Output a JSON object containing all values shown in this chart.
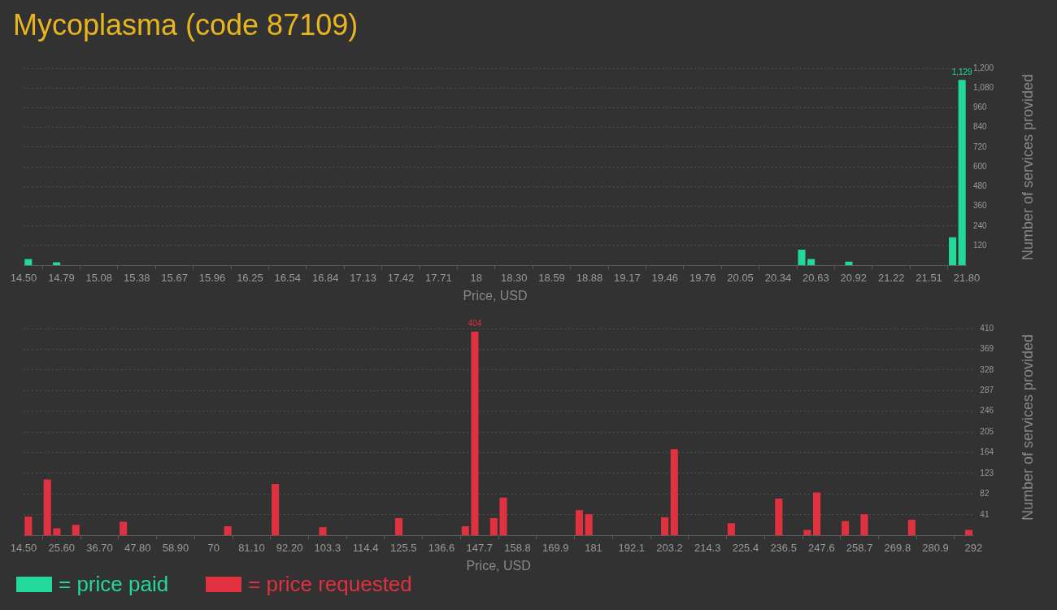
{
  "chart_data": [
    {
      "type": "histogram",
      "title": "Mycoplasma (code 87109)",
      "xlabel": "Price, USD",
      "ylabel": "Number of services provided",
      "bins": [
        14.5,
        14.573,
        14.646,
        14.719,
        14.792,
        14.865,
        14.938,
        15.011,
        15.084,
        15.157,
        15.23,
        15.303,
        15.376,
        15.449,
        15.522,
        15.595,
        15.668,
        15.741,
        15.814,
        15.887,
        15.96,
        16.033,
        16.106,
        16.179,
        16.252,
        16.325,
        16.398,
        16.471,
        16.544,
        16.617,
        16.69,
        16.763,
        16.836,
        16.909,
        16.982,
        17.055,
        17.128,
        17.201,
        17.274,
        17.347,
        17.42,
        17.493,
        17.566,
        17.639,
        17.712,
        17.785,
        17.858,
        17.931,
        18.004,
        18.077,
        18.15,
        18.223,
        18.296,
        18.369,
        18.442,
        18.515,
        18.588,
        18.661,
        18.734,
        18.807,
        18.88,
        18.953,
        19.026,
        19.099,
        19.172,
        19.245,
        19.318,
        19.391,
        19.464,
        19.537,
        19.61,
        19.683,
        19.756,
        19.829,
        19.902,
        19.975,
        20.048,
        20.121,
        20.194,
        20.267,
        20.34,
        20.413,
        20.486,
        20.559,
        20.632,
        20.705,
        20.778,
        20.851,
        20.924,
        20.997,
        21.07,
        21.143,
        21.216,
        21.289,
        21.362,
        21.435,
        21.508,
        21.581,
        21.654,
        21.727,
        21.8
      ],
      "series": [
        {
          "name": "= price paid",
          "color": "#22d99a",
          "values": [
            38,
            0,
            0,
            18,
            0,
            0,
            0,
            0,
            0,
            0,
            0,
            0,
            0,
            0,
            0,
            0,
            0,
            0,
            0,
            0,
            0,
            0,
            0,
            0,
            0,
            0,
            0,
            0,
            0,
            0,
            0,
            0,
            0,
            0,
            0,
            0,
            0,
            0,
            0,
            0,
            0,
            0,
            0,
            0,
            0,
            0,
            0,
            0,
            0,
            0,
            0,
            0,
            0,
            0,
            0,
            0,
            0,
            0,
            0,
            0,
            0,
            0,
            0,
            0,
            0,
            0,
            0,
            0,
            0,
            0,
            0,
            0,
            0,
            0,
            0,
            0,
            0,
            0,
            0,
            0,
            0,
            0,
            95,
            38,
            0,
            0,
            0,
            22,
            0,
            0,
            0,
            0,
            0,
            0,
            0,
            0,
            0,
            0,
            171,
            1129
          ],
          "value_labels": [
            null,
            null,
            null,
            null,
            null,
            null,
            null,
            null,
            null,
            null,
            null,
            null,
            null,
            null,
            null,
            null,
            null,
            null,
            null,
            null,
            null,
            null,
            null,
            null,
            null,
            null,
            null,
            null,
            null,
            null,
            null,
            null,
            null,
            null,
            null,
            null,
            null,
            null,
            null,
            null,
            null,
            null,
            null,
            null,
            null,
            null,
            null,
            null,
            null,
            null,
            null,
            null,
            null,
            null,
            null,
            null,
            null,
            null,
            null,
            null,
            null,
            null,
            null,
            null,
            null,
            null,
            null,
            null,
            null,
            null,
            null,
            null,
            null,
            null,
            null,
            null,
            null,
            null,
            null,
            null,
            null,
            null,
            null,
            null,
            null,
            null,
            null,
            null,
            null,
            null,
            null,
            null,
            null,
            null,
            null,
            null,
            null,
            null,
            null,
            "1,129"
          ]
        }
      ],
      "xlim": [
        14.5,
        21.8
      ],
      "xticks": [
        {
          "value": 14.5,
          "label": "14.50"
        },
        {
          "value": 14.792,
          "label": "14.79"
        },
        {
          "value": 15.084,
          "label": "15.08"
        },
        {
          "value": 15.376,
          "label": "15.38"
        },
        {
          "value": 15.668,
          "label": "15.67"
        },
        {
          "value": 15.96,
          "label": "15.96"
        },
        {
          "value": 16.252,
          "label": "16.25"
        },
        {
          "value": 16.544,
          "label": "16.54"
        },
        {
          "value": 16.836,
          "label": "16.84"
        },
        {
          "value": 17.128,
          "label": "17.13"
        },
        {
          "value": 17.42,
          "label": "17.42"
        },
        {
          "value": 17.712,
          "label": "17.71"
        },
        {
          "value": 18.004,
          "label": "18"
        },
        {
          "value": 18.296,
          "label": "18.30"
        },
        {
          "value": 18.588,
          "label": "18.59"
        },
        {
          "value": 18.88,
          "label": "18.88"
        },
        {
          "value": 19.172,
          "label": "19.17"
        },
        {
          "value": 19.464,
          "label": "19.46"
        },
        {
          "value": 19.756,
          "label": "19.76"
        },
        {
          "value": 20.048,
          "label": "20.05"
        },
        {
          "value": 20.34,
          "label": "20.34"
        },
        {
          "value": 20.632,
          "label": "20.63"
        },
        {
          "value": 20.924,
          "label": "20.92"
        },
        {
          "value": 21.216,
          "label": "21.22"
        },
        {
          "value": 21.508,
          "label": "21.51"
        },
        {
          "value": 21.8,
          "label": "21.80"
        }
      ],
      "ylim": [
        0,
        1200
      ],
      "yticks": [
        120,
        240,
        360,
        480,
        600,
        720,
        840,
        960,
        {
          "value": 1080,
          "label": "1,080"
        },
        {
          "value": 1200,
          "label": "1,200"
        }
      ],
      "grid": "y",
      "legend": "bottom left"
    },
    {
      "type": "histogram",
      "xlabel": "Price, USD",
      "ylabel": "Number of services provided",
      "bins": [
        14.5,
        17.275,
        20.05,
        22.825,
        25.6,
        28.375,
        31.15,
        33.925,
        36.7,
        39.475,
        42.25,
        45.025,
        47.8,
        50.575,
        53.35,
        56.125,
        58.9,
        61.675,
        64.45,
        67.225,
        70,
        72.775,
        75.55,
        78.325,
        81.1,
        83.875,
        86.65,
        89.425,
        92.2,
        94.975,
        97.75,
        100.525,
        103.3,
        106.075,
        108.85,
        111.625,
        114.4,
        117.175,
        119.95,
        122.725,
        125.5,
        128.275,
        131.05,
        133.825,
        136.6,
        139.375,
        142.15,
        144.925,
        147.7,
        150.475,
        153.25,
        156.025,
        158.8,
        161.575,
        164.35,
        167.125,
        169.9,
        172.675,
        175.45,
        178.225,
        181,
        183.775,
        186.55,
        189.325,
        192.1,
        194.875,
        197.65,
        200.425,
        203.2,
        205.975,
        208.75,
        211.525,
        214.3,
        217.075,
        219.85,
        222.625,
        225.4,
        228.175,
        230.95,
        233.725,
        236.5,
        239.275,
        242.05,
        244.825,
        247.6,
        250.375,
        253.15,
        255.925,
        258.7,
        261.475,
        264.25,
        267.025,
        269.8,
        272.575,
        275.35,
        278.125,
        280.9,
        283.675,
        286.45,
        289.225,
        292
      ],
      "series": [
        {
          "name": "= price requested",
          "color": "#e03141",
          "values": [
            37,
            0,
            111,
            14,
            0,
            21,
            0,
            0,
            0,
            0,
            27,
            0,
            0,
            0,
            0,
            0,
            0,
            0,
            0,
            0,
            0,
            18,
            0,
            0,
            0,
            0,
            102,
            0,
            0,
            0,
            0,
            16,
            0,
            0,
            0,
            0,
            0,
            0,
            0,
            34,
            0,
            0,
            0,
            0,
            0,
            0,
            18,
            404,
            0,
            34,
            75,
            0,
            0,
            0,
            0,
            0,
            0,
            0,
            50,
            42,
            0,
            0,
            0,
            0,
            0,
            0,
            0,
            36,
            171,
            0,
            0,
            0,
            0,
            0,
            24,
            0,
            0,
            0,
            0,
            73,
            0,
            0,
            11,
            85,
            0,
            0,
            28,
            0,
            42,
            0,
            0,
            0,
            0,
            31,
            0,
            0,
            0,
            0,
            0,
            11
          ],
          "value_labels": [
            null,
            null,
            null,
            null,
            null,
            null,
            null,
            null,
            null,
            null,
            null,
            null,
            null,
            null,
            null,
            null,
            null,
            null,
            null,
            null,
            null,
            null,
            null,
            null,
            null,
            null,
            null,
            null,
            null,
            null,
            null,
            null,
            null,
            null,
            null,
            null,
            null,
            null,
            null,
            null,
            null,
            null,
            null,
            null,
            null,
            null,
            null,
            "404",
            null,
            null,
            null,
            null,
            null,
            null,
            null,
            null,
            null,
            null,
            null,
            null,
            null,
            null,
            null,
            null,
            null,
            null,
            null,
            null,
            null,
            null,
            null,
            null,
            null,
            null,
            null,
            null,
            null,
            null,
            null,
            null,
            null,
            null,
            null,
            null,
            null,
            null,
            null,
            null,
            null,
            null,
            null,
            null,
            null,
            null,
            null,
            null,
            null,
            null,
            null,
            null
          ]
        }
      ],
      "xlim": [
        14.5,
        292
      ],
      "xticks": [
        {
          "value": 14.5,
          "label": "14.50"
        },
        {
          "value": 25.6,
          "label": "25.60"
        },
        {
          "value": 36.7,
          "label": "36.70"
        },
        {
          "value": 47.8,
          "label": "47.80"
        },
        {
          "value": 58.9,
          "label": "58.90"
        },
        70,
        {
          "value": 81.1,
          "label": "81.10"
        },
        {
          "value": 92.2,
          "label": "92.20"
        },
        103.3,
        114.4,
        125.5,
        136.6,
        147.7,
        158.8,
        169.9,
        181,
        192.1,
        203.2,
        214.3,
        225.4,
        236.5,
        247.6,
        258.7,
        269.8,
        280.9,
        292
      ],
      "ylim": [
        0,
        410
      ],
      "yticks": [
        41,
        82,
        123,
        164,
        205,
        246,
        287,
        328,
        369,
        410
      ],
      "grid": "y",
      "legend": "bottom left"
    }
  ]
}
